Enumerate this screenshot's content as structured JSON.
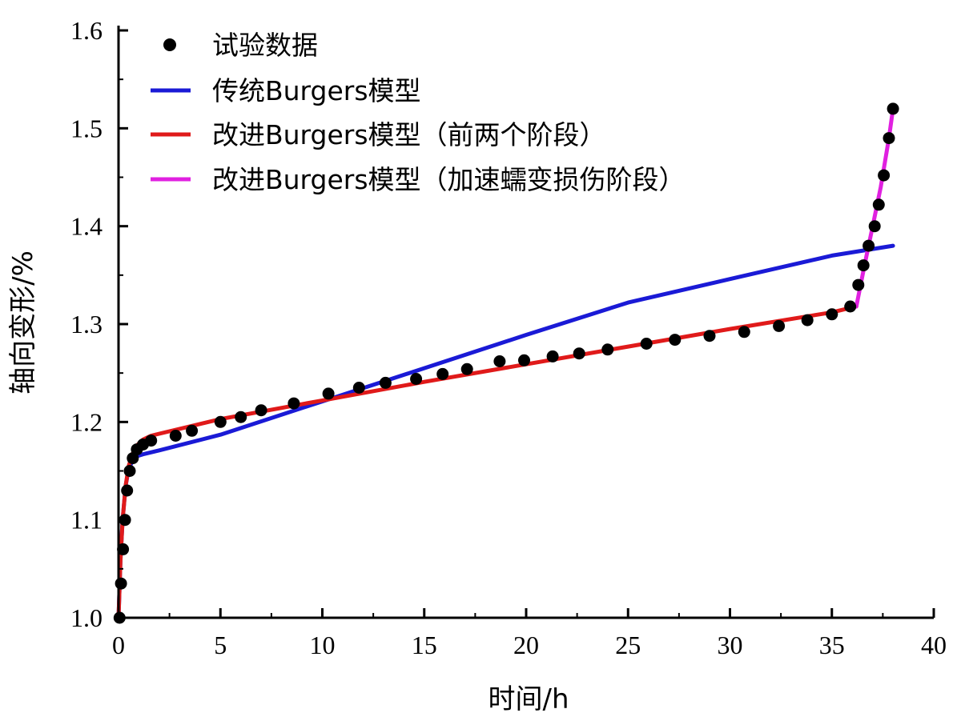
{
  "chart_data": {
    "type": "line",
    "xlabel": "时间/h",
    "ylabel": "轴向变形/%",
    "xlim": [
      0,
      40
    ],
    "ylim": [
      1.0,
      1.6
    ],
    "x_ticks": [
      0,
      5,
      10,
      15,
      20,
      25,
      30,
      35,
      40
    ],
    "y_ticks": [
      1.0,
      1.1,
      1.2,
      1.3,
      1.4,
      1.5,
      1.6
    ],
    "x_tick_labels": [
      "0",
      "5",
      "10",
      "15",
      "20",
      "25",
      "30",
      "35",
      "40"
    ],
    "y_tick_labels": [
      "1.0",
      "1.1",
      "1.2",
      "1.3",
      "1.4",
      "1.5",
      "1.6"
    ],
    "grid": false,
    "legend_position": "top-left",
    "series": [
      {
        "name": "试验数据",
        "kind": "scatter",
        "color": "#000000",
        "x": [
          0.05,
          0.12,
          0.22,
          0.32,
          0.42,
          0.55,
          0.7,
          0.9,
          1.2,
          1.6,
          2.8,
          3.6,
          5.0,
          6.0,
          7.0,
          8.6,
          10.3,
          11.8,
          13.1,
          14.6,
          15.9,
          17.1,
          18.7,
          19.9,
          21.3,
          22.6,
          24.0,
          25.9,
          27.3,
          29.0,
          30.7,
          32.4,
          33.8,
          35.0,
          35.9,
          36.3,
          36.55,
          36.8,
          37.1,
          37.3,
          37.55,
          37.8,
          38.0
        ],
        "y": [
          1.0,
          1.035,
          1.07,
          1.1,
          1.13,
          1.15,
          1.163,
          1.172,
          1.177,
          1.181,
          1.186,
          1.191,
          1.2,
          1.205,
          1.212,
          1.219,
          1.229,
          1.235,
          1.24,
          1.244,
          1.249,
          1.254,
          1.262,
          1.263,
          1.267,
          1.27,
          1.274,
          1.28,
          1.284,
          1.288,
          1.292,
          1.298,
          1.304,
          1.31,
          1.318,
          1.34,
          1.36,
          1.38,
          1.4,
          1.422,
          1.452,
          1.49,
          1.52
        ]
      },
      {
        "name": "传统Burgers模型",
        "kind": "line",
        "color": "#1a1ad6",
        "x": [
          0,
          0.1,
          0.2,
          0.35,
          0.5,
          0.7,
          0.9,
          1.2,
          2.0,
          5,
          10,
          15,
          20,
          25,
          30,
          35,
          38
        ],
        "y": [
          1.0,
          1.06,
          1.1,
          1.135,
          1.152,
          1.161,
          1.165,
          1.167,
          1.171,
          1.187,
          1.221,
          1.255,
          1.289,
          1.322,
          1.346,
          1.37,
          1.38
        ]
      },
      {
        "name": "改进Burgers模型（前两个阶段）",
        "kind": "line",
        "color": "#e01a1a",
        "x": [
          0,
          0.1,
          0.2,
          0.35,
          0.5,
          0.7,
          0.9,
          1.2,
          1.6,
          2.0,
          5,
          10,
          15,
          20,
          25,
          30,
          35,
          36.2
        ],
        "y": [
          1.0,
          1.06,
          1.1,
          1.135,
          1.155,
          1.168,
          1.176,
          1.182,
          1.186,
          1.188,
          1.203,
          1.222,
          1.241,
          1.259,
          1.277,
          1.295,
          1.312,
          1.318
        ]
      },
      {
        "name": "改进Burgers模型（加速蠕变损伤阶段）",
        "kind": "line",
        "color": "#e020e0",
        "x": [
          36.2,
          36.6,
          37.0,
          37.4,
          37.8,
          38.0
        ],
        "y": [
          1.318,
          1.36,
          1.4,
          1.44,
          1.49,
          1.52
        ]
      }
    ]
  }
}
